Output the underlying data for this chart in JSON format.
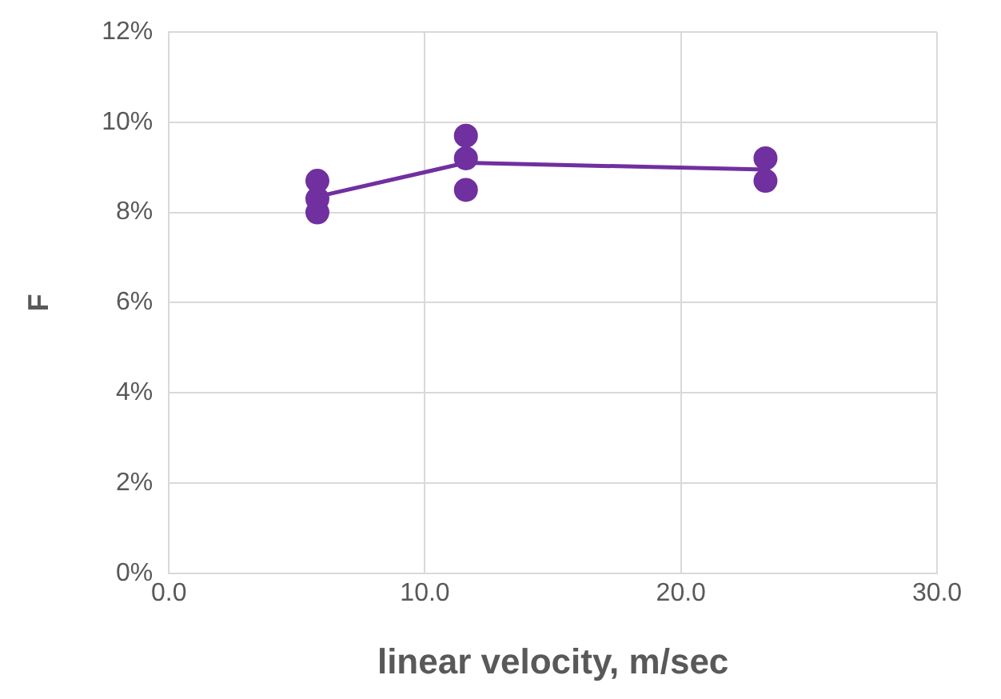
{
  "chart_data": {
    "type": "scatter",
    "xlabel": "linear velocity, m/sec",
    "ylabel": "F",
    "xlim": [
      0,
      30
    ],
    "xticks": [
      {
        "value": 0,
        "label": "0.0"
      },
      {
        "value": 10,
        "label": "10.0"
      },
      {
        "value": 20,
        "label": "20.0"
      },
      {
        "value": 30,
        "label": "30.0"
      }
    ],
    "ylim": [
      0,
      12
    ],
    "yticks": [
      {
        "value": 0,
        "label": "0%"
      },
      {
        "value": 2,
        "label": "2%"
      },
      {
        "value": 4,
        "label": "4%"
      },
      {
        "value": 6,
        "label": "6%"
      },
      {
        "value": 8,
        "label": "8%"
      },
      {
        "value": 10,
        "label": "10%"
      },
      {
        "value": 12,
        "label": "12%"
      }
    ],
    "grid": true,
    "legend": false,
    "marker": "circle",
    "series": [
      {
        "color": "#7030a0",
        "x": [
          5.8,
          5.8,
          5.8,
          11.6,
          11.6,
          11.6,
          23.3,
          23.3
        ],
        "values": [
          8.7,
          8.3,
          8.0,
          9.7,
          9.2,
          8.5,
          9.2,
          8.7
        ]
      },
      {
        "type": "line",
        "color": "#7030a0",
        "marker": "none",
        "x": [
          5.8,
          11.6,
          23.3
        ],
        "values": [
          8.35,
          9.1,
          8.95
        ]
      }
    ]
  }
}
